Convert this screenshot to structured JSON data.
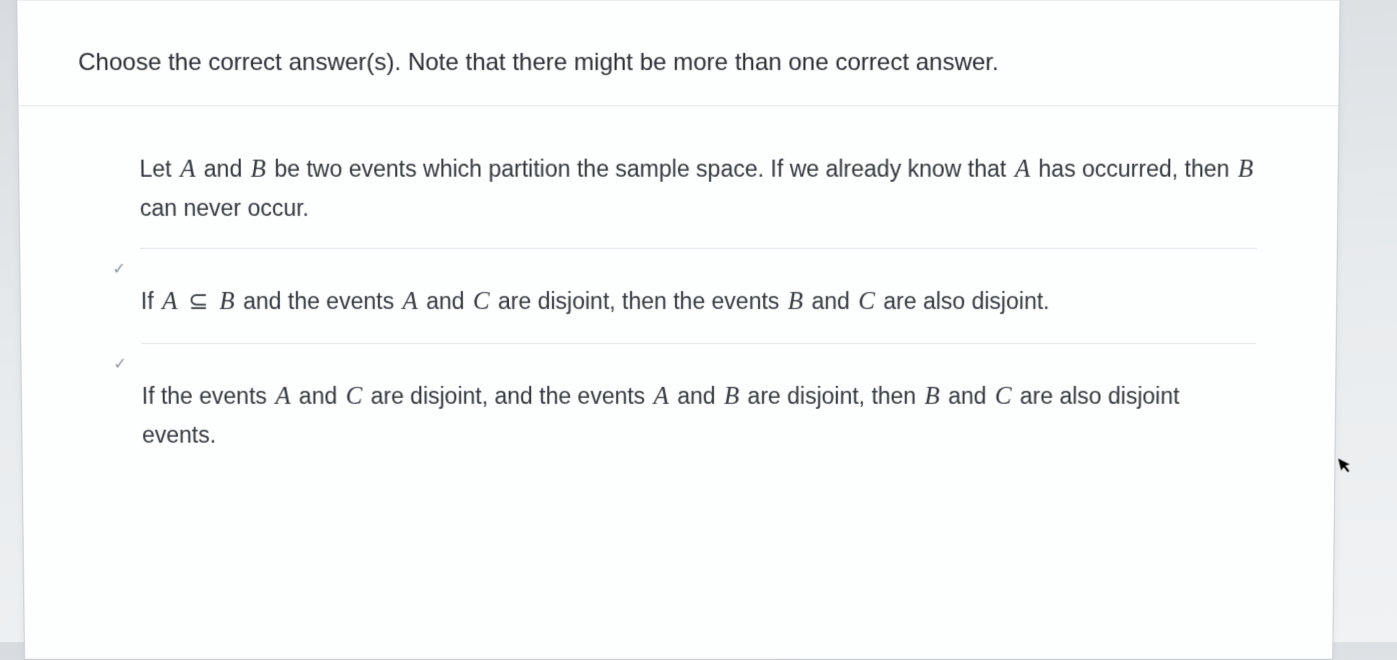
{
  "document": {
    "background_gradient": [
      "#d8dce0",
      "#e8ebed",
      "#f0f2f4"
    ],
    "page_bg": "#fdfefe",
    "border_color": "#c8cdd2",
    "divider_color": "#dfe3e7",
    "text_color": "#2a2e33",
    "font_family": "Segoe UI",
    "prompt_fontsize": 24,
    "option_fontsize": 23,
    "math_fontsize": 25
  },
  "prompt": "Choose the correct answer(s). Note that there might be more than one correct answer.",
  "options": [
    {
      "has_check": false,
      "segments": [
        {
          "t": "text",
          "v": "Let "
        },
        {
          "t": "var",
          "v": "A"
        },
        {
          "t": "text",
          "v": " and "
        },
        {
          "t": "var",
          "v": "B"
        },
        {
          "t": "text",
          "v": " be two events which partition the sample space. If we already know that "
        },
        {
          "t": "var",
          "v": "A"
        },
        {
          "t": "text",
          "v": " has occurred, then "
        },
        {
          "t": "var",
          "v": "B"
        },
        {
          "t": "text",
          "v": " can never occur."
        }
      ]
    },
    {
      "has_check": true,
      "segments": [
        {
          "t": "text",
          "v": "If "
        },
        {
          "t": "var",
          "v": "A"
        },
        {
          "t": "sym",
          "v": " ⊆ "
        },
        {
          "t": "var",
          "v": "B"
        },
        {
          "t": "text",
          "v": " and the events "
        },
        {
          "t": "var",
          "v": "A"
        },
        {
          "t": "text",
          "v": " and "
        },
        {
          "t": "var",
          "v": "C"
        },
        {
          "t": "text",
          "v": " are disjoint, then the events "
        },
        {
          "t": "var",
          "v": "B"
        },
        {
          "t": "text",
          "v": " and "
        },
        {
          "t": "var",
          "v": "C"
        },
        {
          "t": "text",
          "v": " are also disjoint."
        }
      ]
    },
    {
      "has_check": true,
      "segments": [
        {
          "t": "text",
          "v": "If the events "
        },
        {
          "t": "var",
          "v": "A"
        },
        {
          "t": "text",
          "v": " and "
        },
        {
          "t": "var",
          "v": "C"
        },
        {
          "t": "text",
          "v": " are disjoint, and the events "
        },
        {
          "t": "var",
          "v": "A"
        },
        {
          "t": "text",
          "v": " and "
        },
        {
          "t": "var",
          "v": "B"
        },
        {
          "t": "text",
          "v": " are disjoint, then "
        },
        {
          "t": "var",
          "v": "B"
        },
        {
          "t": "text",
          "v": " and "
        },
        {
          "t": "var",
          "v": "C"
        },
        {
          "t": "text",
          "v": " are also disjoint events."
        }
      ]
    }
  ],
  "check_glyph": "✓"
}
